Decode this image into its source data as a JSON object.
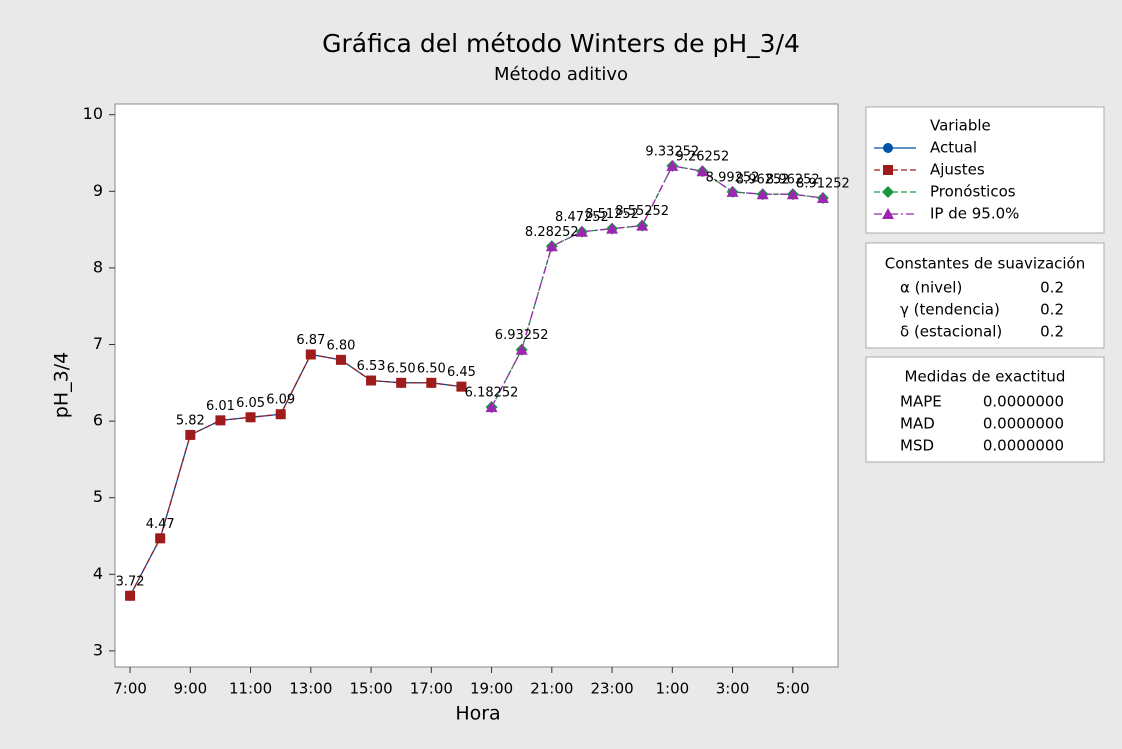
{
  "chart_data": {
    "type": "line",
    "title": "Gráfica del método Winters de pH_3/4",
    "subtitle": "Método aditivo",
    "x_label": "Hora",
    "y_label": "pH_3/4",
    "categories": [
      "7:00",
      null,
      "9:00",
      null,
      "11:00",
      null,
      "13:00",
      null,
      "15:00",
      null,
      "17:00",
      null,
      "19:00",
      null,
      "21:00",
      null,
      "23:00",
      null,
      "1:00",
      null,
      "3:00",
      null,
      "5:00",
      null
    ],
    "ylim": [
      2.79,
      10.14
    ],
    "yticks": [
      3,
      4,
      5,
      6,
      7,
      8,
      9,
      10
    ],
    "legend_title": "Variable",
    "legend": "right",
    "series": [
      {
        "name": "Actual",
        "color": "#0054a6",
        "marker": "circle",
        "line": "solid",
        "data_labels": false,
        "values": [
          3.72,
          4.47,
          5.82,
          6.01,
          6.05,
          6.09,
          6.87,
          6.8,
          6.53,
          6.5,
          6.5,
          6.45,
          null,
          null,
          null,
          null,
          null,
          null,
          null,
          null,
          null,
          null,
          null,
          null
        ]
      },
      {
        "name": "Ajustes",
        "color": "#a01c1c",
        "marker": "square",
        "line": "dashed",
        "data_labels": true,
        "values": [
          3.72,
          4.47,
          5.82,
          6.01,
          6.05,
          6.09,
          6.87,
          6.8,
          6.53,
          6.5,
          6.5,
          6.45,
          null,
          null,
          null,
          null,
          null,
          null,
          null,
          null,
          null,
          null,
          null,
          null
        ],
        "value_labels": [
          "3.72",
          "4.47",
          "5.82",
          "6.01",
          "6.05",
          "6.09",
          "6.87",
          "6.80",
          "6.53",
          "6.50",
          "6.50",
          "6.45",
          null,
          null,
          null,
          null,
          null,
          null,
          null,
          null,
          null,
          null,
          null,
          null
        ]
      },
      {
        "name": "Pronósticos",
        "color": "#1a9641",
        "marker": "diamond",
        "line": "dashed",
        "data_labels": true,
        "values": [
          null,
          null,
          null,
          null,
          null,
          null,
          null,
          null,
          null,
          null,
          null,
          null,
          6.18252,
          6.93252,
          8.28252,
          8.47252,
          8.51252,
          8.55252,
          9.33252,
          9.26252,
          8.99252,
          8.96252,
          8.96252,
          8.91252
        ]
      },
      {
        "name": "IP de 95.0%",
        "color": "#9b27b0",
        "marker": "triangle",
        "line": "dashdot",
        "data_labels": false,
        "values": [
          null,
          null,
          null,
          null,
          null,
          null,
          null,
          null,
          null,
          null,
          null,
          null,
          6.18252,
          6.93252,
          8.28252,
          8.47252,
          8.51252,
          8.55252,
          9.33252,
          9.26252,
          8.99252,
          8.96252,
          8.96252,
          8.91252
        ]
      }
    ],
    "smoothing": {
      "title": "Constantes de suavización",
      "rows": [
        {
          "label": "α (nivel)",
          "value": 0.2
        },
        {
          "label": "γ (tendencia)",
          "value": 0.2
        },
        {
          "label": "δ (estacional)",
          "value": 0.2
        }
      ]
    },
    "accuracy": {
      "title": "Medidas de exactitud",
      "rows": [
        {
          "label": "MAPE",
          "value": "0.0000000"
        },
        {
          "label": "MAD",
          "value": "0.0000000"
        },
        {
          "label": "MSD",
          "value": "0.0000000"
        }
      ]
    }
  }
}
